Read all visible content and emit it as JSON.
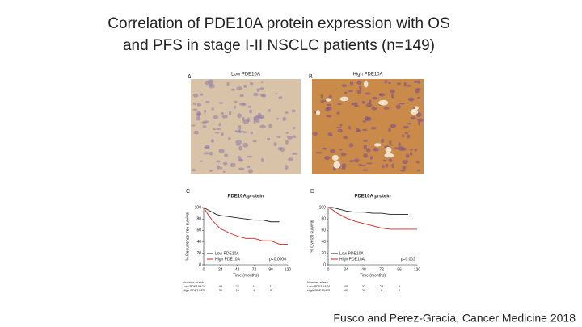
{
  "title": [
    "Correlation of PDE10A protein expression with OS",
    "and PFS in stage I-II NSCLC patients (n=149)"
  ],
  "panels": [
    {
      "letter": "A",
      "label": "Low PDE10A"
    },
    {
      "letter": "B",
      "label": "High PDE10A"
    }
  ],
  "chart_data": [
    {
      "type": "line",
      "letter": "C",
      "title": "PDE10A protein",
      "ylabel": "% Recurrence-free survival",
      "xlabel": "Time (months)",
      "x": [
        0,
        6,
        12,
        18,
        24,
        36,
        48,
        60,
        72,
        84,
        96,
        108,
        120
      ],
      "series": [
        {
          "name": "Low PDE10A",
          "color": "#222222",
          "values": [
            100,
            96,
            92,
            88,
            86,
            84,
            82,
            80,
            78,
            78,
            75,
            75,
            null
          ]
        },
        {
          "name": "High PDE10A",
          "color": "#d62020",
          "values": [
            100,
            88,
            78,
            70,
            63,
            56,
            50,
            46,
            46,
            42,
            42,
            36,
            36
          ]
        }
      ],
      "xlim": [
        0,
        120
      ],
      "ylim": [
        0,
        100
      ],
      "xticks": [
        0,
        24,
        48,
        72,
        96,
        120
      ],
      "yticks": [
        0,
        20,
        40,
        60,
        80,
        100
      ],
      "p_value": "p<0.0006",
      "risk_header": "Number at risk",
      "risk_rows": [
        {
          "name": "Low PDE10A",
          "values": [
            74,
            49,
            27,
            14,
            11
          ]
        },
        {
          "name": "High PDE10A",
          "values": [
            75,
            30,
            10,
            4,
            5
          ]
        }
      ]
    },
    {
      "type": "line",
      "letter": "D",
      "title": "PDE10A protein",
      "ylabel": "% Overall survival",
      "xlabel": "Time (months)",
      "x": [
        0,
        6,
        12,
        18,
        24,
        36,
        48,
        60,
        72,
        84,
        96,
        108,
        120
      ],
      "series": [
        {
          "name": "Low PDE10A",
          "color": "#222222",
          "values": [
            100,
            100,
            98,
            96,
            94,
            92,
            92,
            90,
            90,
            88,
            88,
            88,
            null
          ]
        },
        {
          "name": "High PDE10A",
          "color": "#d62020",
          "values": [
            100,
            96,
            90,
            86,
            82,
            76,
            72,
            68,
            64,
            62,
            62,
            62,
            62
          ]
        }
      ],
      "xlim": [
        0,
        120
      ],
      "ylim": [
        0,
        100
      ],
      "xticks": [
        0,
        24,
        48,
        72,
        96,
        120
      ],
      "yticks": [
        0,
        20,
        40,
        60,
        80,
        100
      ],
      "p_value": "p=0.002",
      "risk_header": "Number at risk",
      "risk_rows": [
        {
          "name": "Low PDE10A",
          "values": [
            74,
            49,
            32,
            25,
            4
          ]
        },
        {
          "name": "High PDE10A",
          "values": [
            75,
            46,
            20,
            8,
            3
          ]
        }
      ]
    }
  ],
  "citation": "Fusco and Perez-Gracia, Cancer Medicine 2018"
}
